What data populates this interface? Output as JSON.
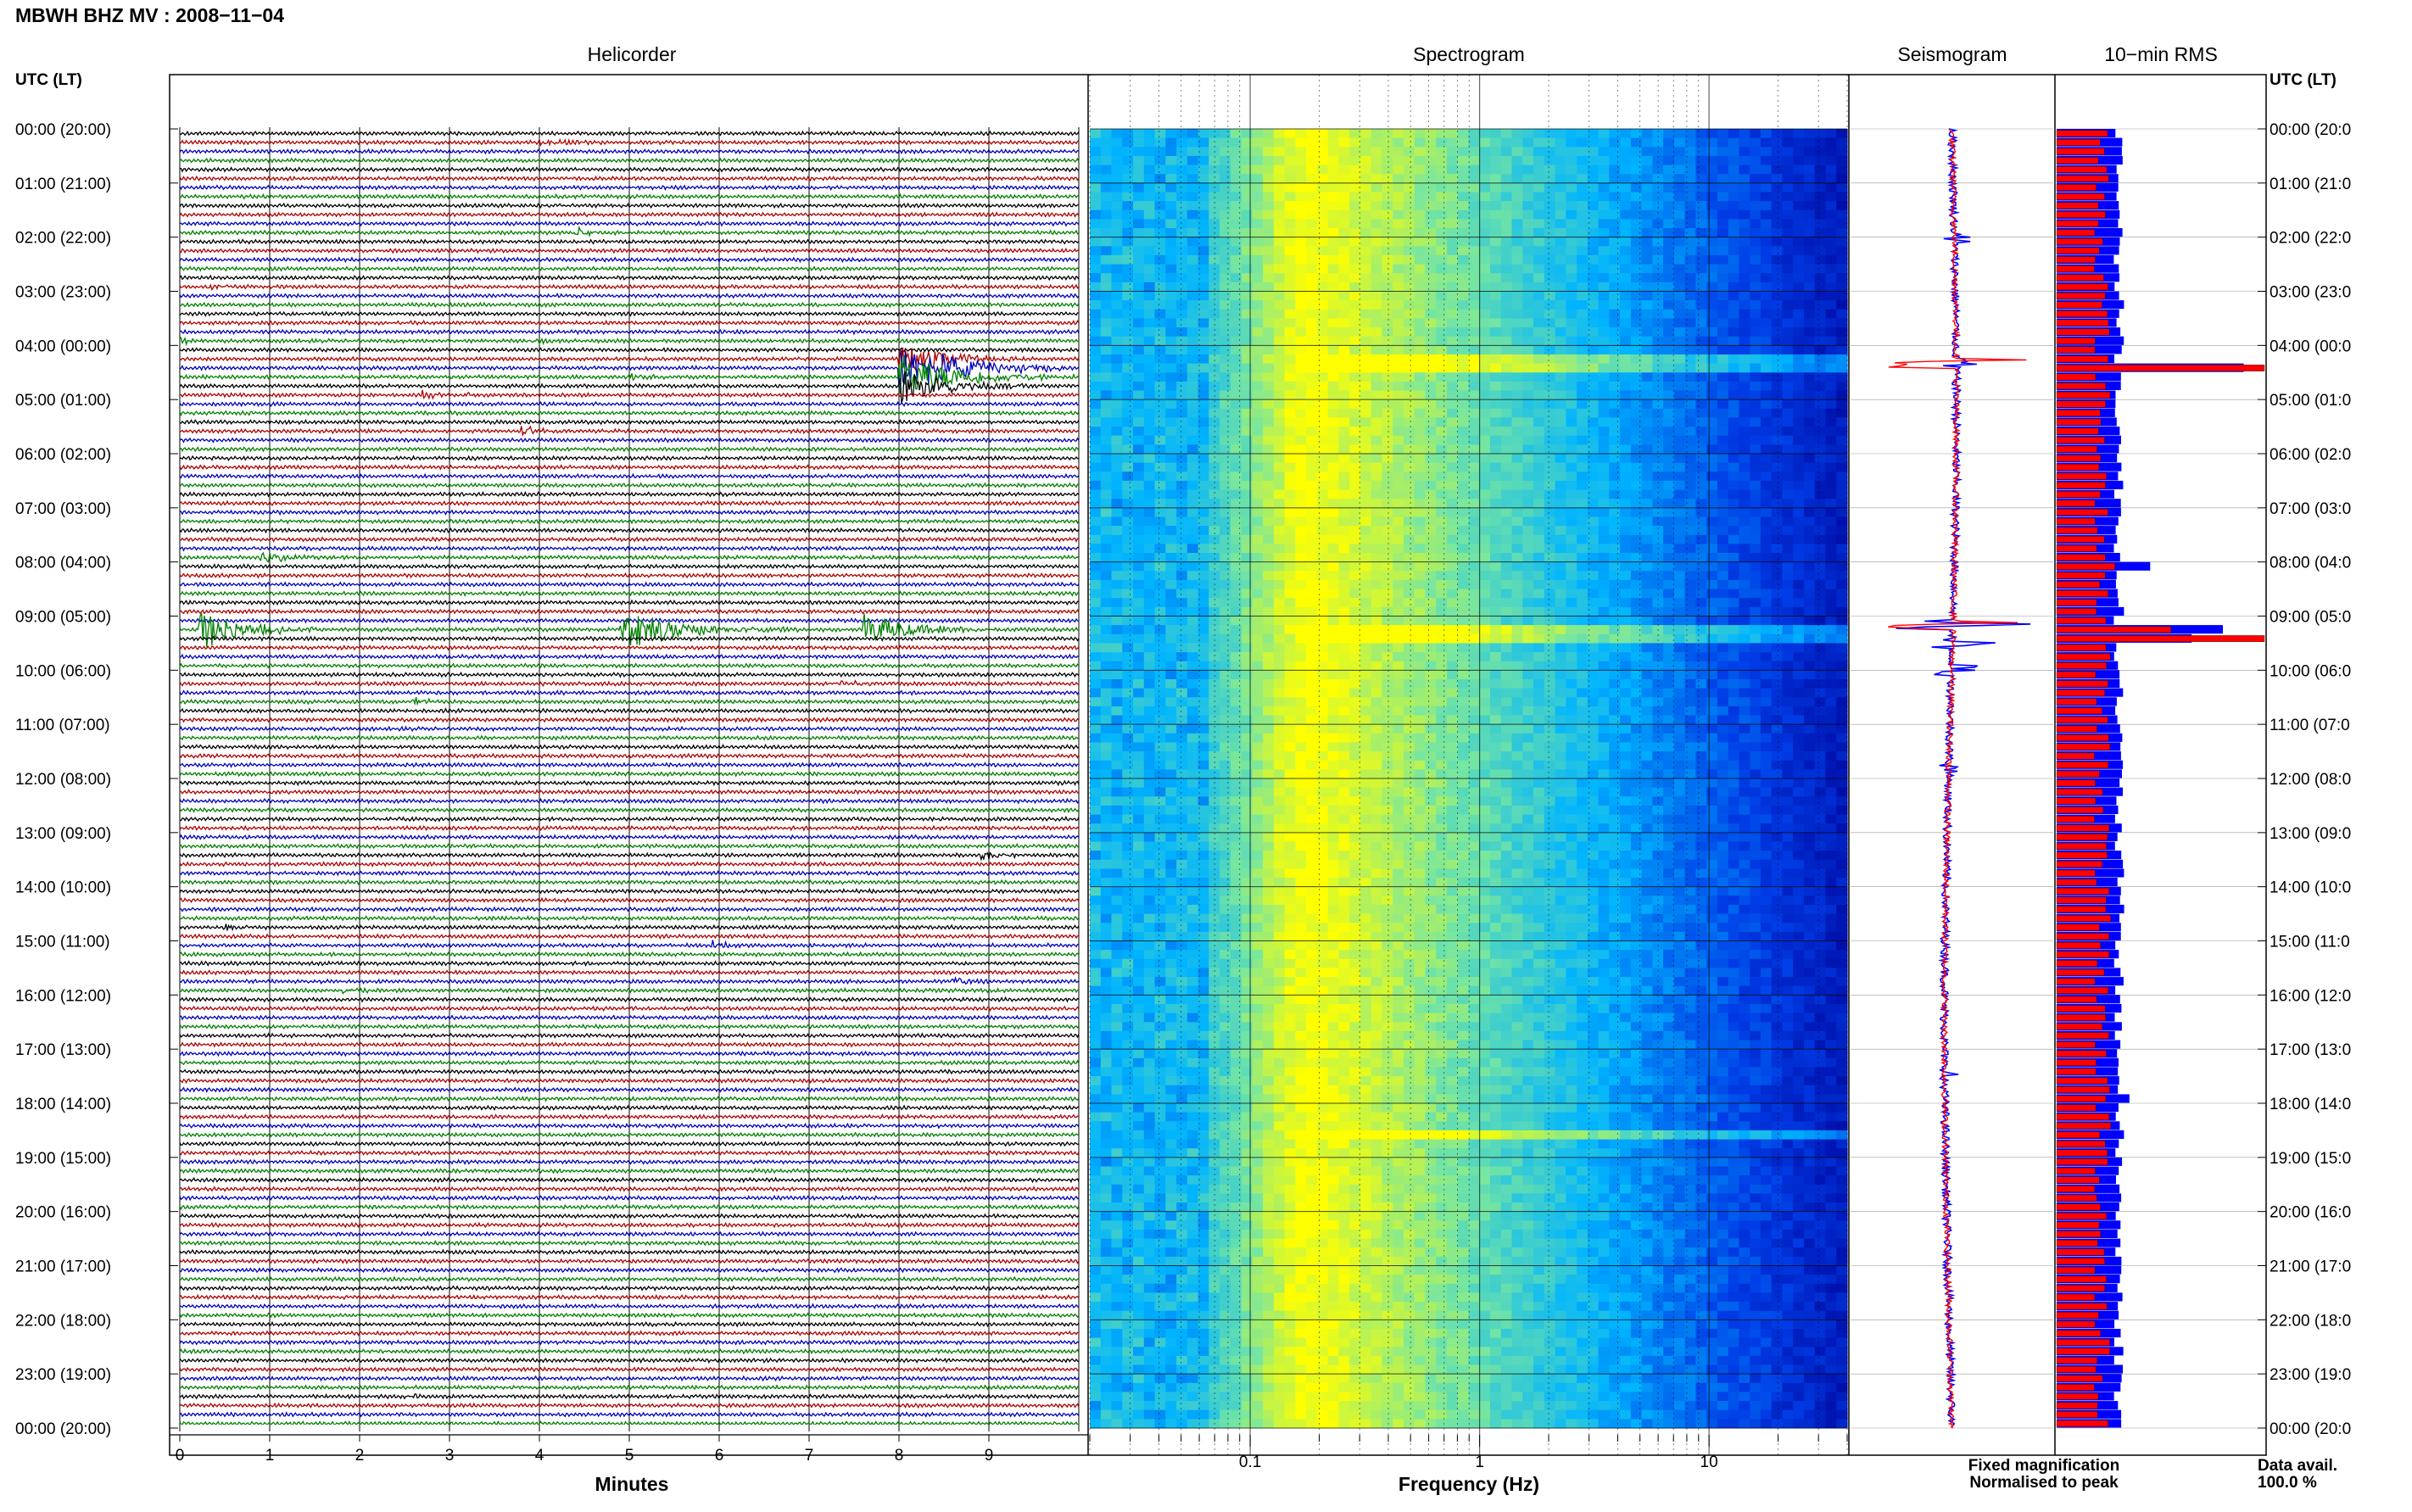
{
  "header": {
    "title": "MBWH BHZ MV : 2008−11−04"
  },
  "panels": {
    "helicorder": "Helicorder",
    "spectrogram": "Spectrogram",
    "seismogram": "Seismogram",
    "rms": "10−min RMS"
  },
  "axes": {
    "left_time_label": "UTC (LT)",
    "right_time_label": "UTC (LT)",
    "minutes_label": "Minutes",
    "frequency_label": "Frequency (Hz)"
  },
  "legend": {
    "fixed": "Fixed magnification",
    "normalised": "Normalised to peak",
    "fixed_color": "#0000ff",
    "normalised_color": "#ff0000"
  },
  "availability": {
    "label": "Data avail.",
    "value": "100.0 %"
  },
  "colors": {
    "trace_cycle": [
      "#000000",
      "#b00000",
      "#0000c0",
      "#008000"
    ],
    "spectro_low": "#0000a0",
    "spectro_mid": "#00c8ff",
    "spectro_high": "#ffff00"
  },
  "chart_data": [
    {
      "type": "helicorder",
      "title": "Helicorder",
      "xlabel": "Minutes",
      "x_ticks": [
        "0",
        "1",
        "2",
        "3",
        "4",
        "5",
        "6",
        "7",
        "8",
        "9"
      ],
      "xlim": [
        0,
        10
      ],
      "lines_per_hour": 6,
      "y_ticks_utc": [
        "00:00",
        "01:00",
        "02:00",
        "03:00",
        "04:00",
        "05:00",
        "06:00",
        "07:00",
        "08:00",
        "09:00",
        "10:00",
        "11:00",
        "12:00",
        "13:00",
        "14:00",
        "15:00",
        "16:00",
        "17:00",
        "18:00",
        "19:00",
        "20:00",
        "21:00",
        "22:00",
        "23:00",
        "00:00"
      ],
      "y_ticks_lt_left": [
        "(20:00)",
        "(21:00)",
        "(22:00)",
        "(23:00)",
        "(00:00)",
        "(01:00)",
        "(02:00)",
        "(03:00)",
        "(04:00)",
        "(05:00)",
        "(06:00)",
        "(07:00)",
        "(08:00)",
        "(09:00)",
        "(10:00)",
        "(11:00)",
        "(12:00)",
        "(13:00)",
        "(14:00)",
        "(15:00)",
        "(16:00)",
        "(17:00)",
        "(18:00)",
        "(19:00)",
        "(20:00)"
      ],
      "y_ticks_lt_right": [
        "(20:0",
        "(21:0",
        "(22:0",
        "(23:0",
        "(00:0",
        "(01:0",
        "(02:0",
        "(03:0",
        "(04:0",
        "(05:0",
        "(06:0",
        "(07:0",
        "(08:0",
        "(09:0",
        "(10:0",
        "(11:0",
        "(12:0",
        "(13:0",
        "(14:0",
        "(15:0",
        "(16:0",
        "(17:0",
        "(18:0",
        "(19:0",
        "(20:0"
      ],
      "events": [
        {
          "line": 1,
          "minute": 4.0,
          "amp": 4,
          "dur": 1.0
        },
        {
          "line": 11,
          "minute": 4.4,
          "amp": 6,
          "dur": 0.8
        },
        {
          "line": 17,
          "minute": 0.3,
          "amp": 4,
          "dur": 0.6
        },
        {
          "line": 23,
          "minute": 0.0,
          "amp": 5,
          "dur": 0.4
        },
        {
          "line": 23,
          "minute": 3.9,
          "amp": 4,
          "dur": 0.4
        },
        {
          "line": 25,
          "minute": 8.0,
          "amp": 20,
          "dur": 1.6
        },
        {
          "line": 26,
          "minute": 8.0,
          "amp": 30,
          "dur": 2.2
        },
        {
          "line": 27,
          "minute": 8.0,
          "amp": 28,
          "dur": 2.0
        },
        {
          "line": 28,
          "minute": 8.0,
          "amp": 22,
          "dur": 1.6
        },
        {
          "line": 27,
          "minute": 5.0,
          "amp": 5,
          "dur": 0.6
        },
        {
          "line": 29,
          "minute": 2.7,
          "amp": 4,
          "dur": 0.5
        },
        {
          "line": 29,
          "minute": 3.2,
          "amp": 4,
          "dur": 0.4
        },
        {
          "line": 33,
          "minute": 3.8,
          "amp": 6,
          "dur": 0.6
        },
        {
          "line": 47,
          "minute": 0.9,
          "amp": 7,
          "dur": 0.8
        },
        {
          "line": 55,
          "minute": 0.2,
          "amp": 26,
          "dur": 1.4
        },
        {
          "line": 55,
          "minute": 4.9,
          "amp": 26,
          "dur": 2.0
        },
        {
          "line": 55,
          "minute": 7.6,
          "amp": 20,
          "dur": 1.6
        },
        {
          "line": 61,
          "minute": 7.3,
          "amp": 5,
          "dur": 0.8
        },
        {
          "line": 63,
          "minute": 2.6,
          "amp": 5,
          "dur": 0.5
        },
        {
          "line": 80,
          "minute": 8.9,
          "amp": 6,
          "dur": 0.6
        },
        {
          "line": 88,
          "minute": 0.5,
          "amp": 4,
          "dur": 0.5
        },
        {
          "line": 90,
          "minute": 5.9,
          "amp": 5,
          "dur": 0.6
        },
        {
          "line": 94,
          "minute": 8.6,
          "amp": 5,
          "dur": 0.6
        },
        {
          "line": 95,
          "minute": 1.8,
          "amp": 5,
          "dur": 0.6
        },
        {
          "line": 140,
          "minute": 2.5,
          "amp": 5,
          "dur": 0.5
        }
      ]
    },
    {
      "type": "heatmap",
      "title": "Spectrogram",
      "xlabel": "Frequency (Hz)",
      "x_scale": "log",
      "xlim": [
        0.02,
        40
      ],
      "x_ticks": [
        "0.1",
        "1",
        "10"
      ],
      "x_tick_values": [
        0.1,
        1,
        10
      ],
      "rows": 144,
      "peak_frequency_hz": 0.2,
      "strong_rows": [
        25,
        26,
        55,
        56,
        111
      ]
    },
    {
      "type": "line",
      "title": "Seismogram",
      "series": [
        {
          "name": "Fixed magnification",
          "color": "#0000ff",
          "spikes": [
            {
              "row": 12,
              "amp": 5
            },
            {
              "row": 26,
              "amp": 6
            },
            {
              "row": 55,
              "amp": 14
            },
            {
              "row": 57,
              "amp": 8
            },
            {
              "row": 60,
              "amp": 5
            },
            {
              "row": 71,
              "amp": 3
            },
            {
              "row": 105,
              "amp": 3
            }
          ]
        },
        {
          "name": "Normalised to peak",
          "color": "#ff0000",
          "spikes": [
            {
              "row": 26,
              "amp": 12
            },
            {
              "row": 55,
              "amp": 12
            }
          ]
        }
      ]
    },
    {
      "type": "bar",
      "orientation": "horizontal",
      "title": "10−min RMS",
      "bins": 144,
      "series": [
        {
          "name": "Fixed magnification",
          "color": "#0000ff",
          "base": 0.3,
          "peaks": [
            {
              "row": 26,
              "value": 0.9
            },
            {
              "row": 48,
              "value": 0.45
            },
            {
              "row": 55,
              "value": 0.8
            },
            {
              "row": 56,
              "value": 0.65
            },
            {
              "row": 107,
              "value": 0.35
            }
          ]
        },
        {
          "name": "Normalised to peak",
          "color": "#ff0000",
          "base": 0.22,
          "peaks": [
            {
              "row": 26,
              "value": 1.0
            },
            {
              "row": 48,
              "value": 0.28
            },
            {
              "row": 55,
              "value": 0.55
            },
            {
              "row": 56,
              "value": 1.0
            },
            {
              "row": 110,
              "value": 0.26
            }
          ]
        }
      ]
    }
  ]
}
